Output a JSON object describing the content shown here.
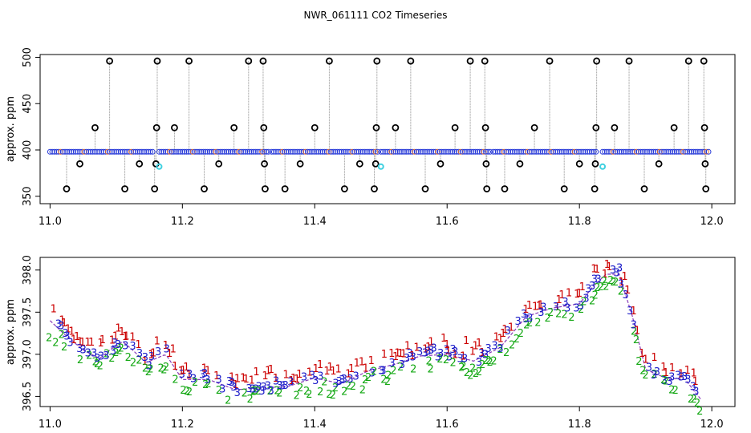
{
  "title": "NWR_061111  CO2 Timeseries",
  "colors": {
    "spike_line": "#8c8c8c",
    "flag_circle": "#000000",
    "baseline_circle": "#2a3cd8",
    "outlier_point": "#3fd0e0",
    "baseline_flag": "#e06b2c",
    "digit_1": "#cc0000",
    "digit_2": "#14a814",
    "digit_3": "#1a1ac8",
    "trend_line": "#8a3ab9"
  },
  "chart_data": [
    {
      "type": "scatter",
      "title": "",
      "xlabel": "",
      "ylabel": "approx. ppm",
      "xlim": [
        10.985,
        12.035
      ],
      "ylim": [
        342,
        503
      ],
      "xticks": [
        "11.0",
        "11.2",
        "11.4",
        "11.6",
        "11.8",
        "12.0"
      ],
      "yticks": [
        "350",
        "400",
        "450",
        "500"
      ],
      "grid": false,
      "baseline_segments": [
        {
          "x_start": 11.0,
          "x_end": 11.155,
          "value": 398
        },
        {
          "x_start": 11.165,
          "x_end": 11.33,
          "value": 398
        },
        {
          "x_start": 11.335,
          "x_end": 11.495,
          "value": 398
        },
        {
          "x_start": 11.5,
          "x_end": 11.665,
          "value": 398
        },
        {
          "x_start": 11.67,
          "x_end": 11.825,
          "value": 398
        },
        {
          "x_start": 11.835,
          "x_end": 11.995,
          "value": 398
        }
      ],
      "spike_points": [
        {
          "x": 11.025,
          "y": 358
        },
        {
          "x": 11.045,
          "y": 385
        },
        {
          "x": 11.068,
          "y": 424
        },
        {
          "x": 11.09,
          "y": 496
        },
        {
          "x": 11.113,
          "y": 358
        },
        {
          "x": 11.135,
          "y": 385
        },
        {
          "x": 11.158,
          "y": 358
        },
        {
          "x": 11.16,
          "y": 385
        },
        {
          "x": 11.161,
          "y": 424
        },
        {
          "x": 11.162,
          "y": 496
        },
        {
          "x": 11.188,
          "y": 424
        },
        {
          "x": 11.21,
          "y": 496
        },
        {
          "x": 11.233,
          "y": 358
        },
        {
          "x": 11.255,
          "y": 385
        },
        {
          "x": 11.278,
          "y": 424
        },
        {
          "x": 11.3,
          "y": 496
        },
        {
          "x": 11.322,
          "y": 496
        },
        {
          "x": 11.323,
          "y": 424
        },
        {
          "x": 11.324,
          "y": 385
        },
        {
          "x": 11.325,
          "y": 358
        },
        {
          "x": 11.355,
          "y": 358
        },
        {
          "x": 11.378,
          "y": 385
        },
        {
          "x": 11.4,
          "y": 424
        },
        {
          "x": 11.422,
          "y": 496
        },
        {
          "x": 11.445,
          "y": 358
        },
        {
          "x": 11.468,
          "y": 385
        },
        {
          "x": 11.49,
          "y": 358
        },
        {
          "x": 11.492,
          "y": 385
        },
        {
          "x": 11.493,
          "y": 424
        },
        {
          "x": 11.494,
          "y": 496
        },
        {
          "x": 11.522,
          "y": 424
        },
        {
          "x": 11.545,
          "y": 496
        },
        {
          "x": 11.567,
          "y": 358
        },
        {
          "x": 11.59,
          "y": 385
        },
        {
          "x": 11.612,
          "y": 424
        },
        {
          "x": 11.635,
          "y": 496
        },
        {
          "x": 11.657,
          "y": 496
        },
        {
          "x": 11.658,
          "y": 424
        },
        {
          "x": 11.659,
          "y": 385
        },
        {
          "x": 11.66,
          "y": 358
        },
        {
          "x": 11.687,
          "y": 358
        },
        {
          "x": 11.71,
          "y": 385
        },
        {
          "x": 11.732,
          "y": 424
        },
        {
          "x": 11.755,
          "y": 496
        },
        {
          "x": 11.777,
          "y": 358
        },
        {
          "x": 11.8,
          "y": 385
        },
        {
          "x": 11.823,
          "y": 358
        },
        {
          "x": 11.824,
          "y": 385
        },
        {
          "x": 11.825,
          "y": 424
        },
        {
          "x": 11.826,
          "y": 496
        },
        {
          "x": 11.853,
          "y": 424
        },
        {
          "x": 11.875,
          "y": 496
        },
        {
          "x": 11.898,
          "y": 358
        },
        {
          "x": 11.92,
          "y": 385
        },
        {
          "x": 11.943,
          "y": 424
        },
        {
          "x": 11.965,
          "y": 496
        },
        {
          "x": 11.988,
          "y": 496
        },
        {
          "x": 11.989,
          "y": 424
        },
        {
          "x": 11.99,
          "y": 385
        },
        {
          "x": 11.991,
          "y": 358
        }
      ],
      "outlier_points": [
        {
          "x": 11.165,
          "y": 382
        },
        {
          "x": 11.5,
          "y": 382
        },
        {
          "x": 11.835,
          "y": 382
        }
      ]
    },
    {
      "type": "scatter",
      "title": "",
      "xlabel": "",
      "ylabel": "approx. ppm",
      "xlim": [
        10.985,
        12.035
      ],
      "ylim": [
        396.38,
        398.15
      ],
      "xticks": [
        "11.0",
        "11.2",
        "11.4",
        "11.6",
        "11.8",
        "12.0"
      ],
      "yticks": [
        "396.5",
        "397.0",
        "397.5",
        "398.0"
      ],
      "grid": false,
      "series": [
        {
          "name": "1",
          "color_key": "digit_1"
        },
        {
          "name": "2",
          "color_key": "digit_2"
        },
        {
          "name": "3",
          "color_key": "digit_3"
        }
      ],
      "trend_x": [
        11.0,
        11.02,
        11.05,
        11.075,
        11.09,
        11.11,
        11.125,
        11.145,
        11.175,
        11.2,
        11.24,
        11.28,
        11.32,
        11.36,
        11.4,
        11.44,
        11.48,
        11.52,
        11.56,
        11.6,
        11.64,
        11.68,
        11.72,
        11.76,
        11.8,
        11.82,
        11.84,
        11.86,
        11.88,
        11.9,
        11.93,
        11.96,
        11.985
      ],
      "trend_y": [
        397.4,
        397.25,
        397.05,
        396.95,
        397.05,
        397.15,
        397.05,
        396.9,
        397.0,
        396.7,
        396.7,
        396.58,
        396.6,
        396.62,
        396.72,
        396.65,
        396.8,
        396.88,
        396.98,
        397.0,
        396.92,
        397.08,
        397.45,
        397.55,
        397.6,
        397.8,
        397.95,
        397.95,
        397.45,
        396.82,
        396.72,
        396.7,
        396.45
      ]
    }
  ]
}
